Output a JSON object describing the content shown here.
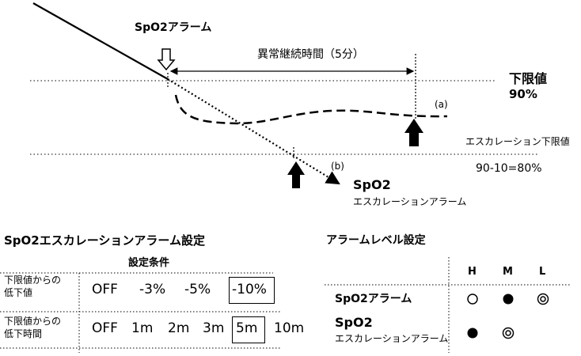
{
  "diagram": {
    "spo2_alarm_label": "SpO2アラーム",
    "duration_label": "異常継続時間（5分）",
    "lower_limit_title": "下限値",
    "lower_limit_value": "90%",
    "escalation_limit_title": "エスカレーション下限値",
    "escalation_limit_value": "90-10=80%",
    "curve_a_label": "(a)",
    "curve_b_label": "(b)",
    "spo2_escalation_label_line1": "SpO2",
    "spo2_escalation_label_line2": "エスカレーションアラーム"
  },
  "escalation_settings": {
    "title": "SpO2エスカレーションアラーム設定",
    "header": "設定条件",
    "row1": {
      "label_line1": "下限値からの",
      "label_line2": "低下値",
      "options": [
        "OFF",
        "-3%",
        "-5%",
        "-10%"
      ],
      "selected": "-10%"
    },
    "row2": {
      "label_line1": "下限値からの",
      "label_line2": "低下時間",
      "options": [
        "OFF",
        "1m",
        "2m",
        "3m",
        "5m",
        "10m"
      ],
      "selected": "5m"
    }
  },
  "alarm_level_settings": {
    "title": "アラームレベル設定",
    "columns": [
      "H",
      "M",
      "L"
    ],
    "rows": [
      {
        "label_line1": "SpO2アラーム",
        "label_line2": "",
        "H": "open-circle",
        "M": "filled-circle",
        "L": "double-circle"
      },
      {
        "label_line1": "SpO2",
        "label_line2": "エスカレーションアラーム",
        "H": "filled-circle",
        "M": "double-circle",
        "L": "none"
      }
    ]
  }
}
